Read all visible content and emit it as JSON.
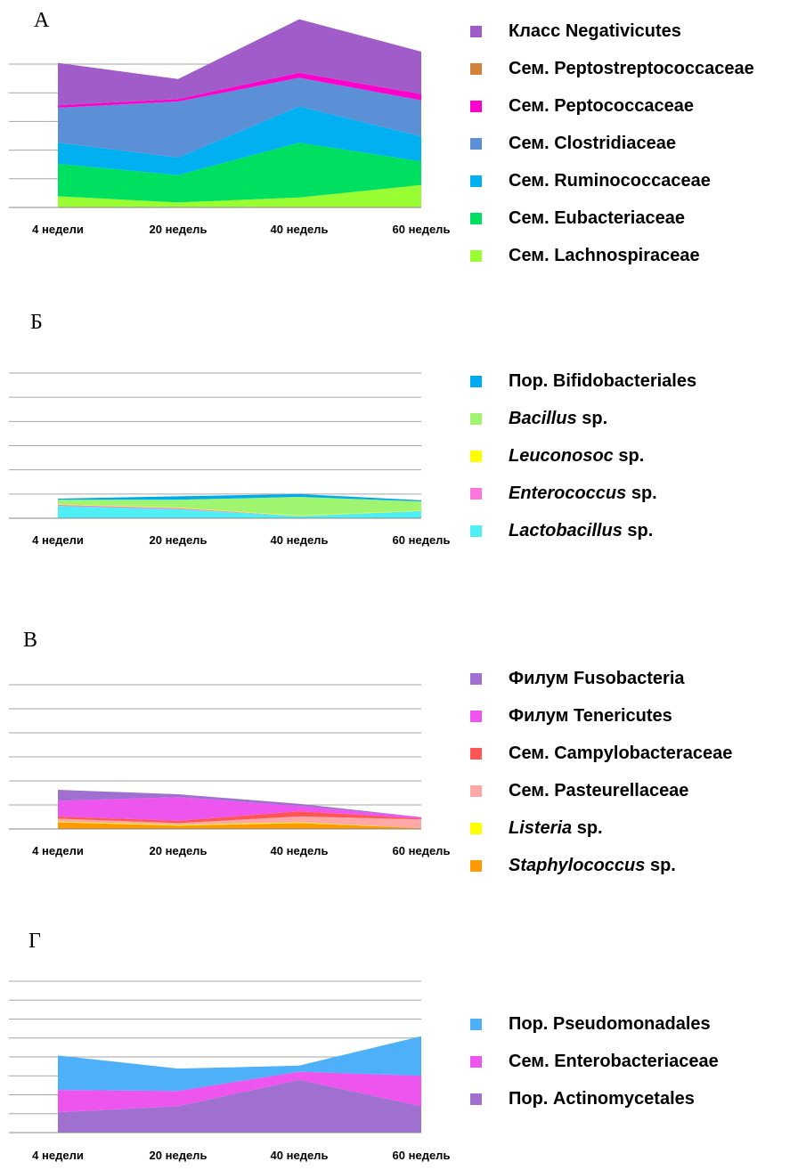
{
  "chart_data": [
    {
      "type": "area",
      "panel": "А",
      "categories": [
        "4 недели",
        "20 недель",
        "40 недель",
        "60 недель"
      ],
      "grid": true,
      "legend_position": "right",
      "series": [
        {
          "name": "Сем. Lachnospiraceae",
          "color": "#99ff33",
          "values": [
            0.9,
            0.4,
            0.8,
            1.8
          ]
        },
        {
          "name": "Сем. Eubacteriaceae",
          "color": "#00e060",
          "values": [
            2.6,
            2.2,
            4.4,
            1.9
          ]
        },
        {
          "name": "Сем. Ruminococcaceae",
          "color": "#00b0f0",
          "values": [
            1.7,
            1.4,
            2.9,
            2.0
          ]
        },
        {
          "name": "Сем. Clostridiaceae",
          "color": "#5b8fd6",
          "values": [
            2.8,
            4.5,
            2.3,
            2.9
          ]
        },
        {
          "name": "Сем. Peptococcaceae",
          "color": "#ff00cc",
          "values": [
            0.2,
            0.2,
            0.4,
            0.5
          ]
        },
        {
          "name": "Сем. Peptostreptococcaceae",
          "color": "#d4813a",
          "values": [
            0.0,
            0.0,
            0.0,
            0.0
          ]
        },
        {
          "name": "Класс Negativicutes",
          "color": "#a05cc8",
          "values": [
            3.4,
            1.6,
            4.3,
            3.4
          ]
        }
      ]
    },
    {
      "type": "area",
      "panel": "Б",
      "categories": [
        "4 недели",
        "20 недель",
        "40 недель",
        "60 недель"
      ],
      "grid": true,
      "legend_position": "right",
      "series": [
        {
          "name": "Lactobacillus sp.",
          "name_italic": "Lactobacillus",
          "name_suffix": " sp.",
          "color": "#4ff0f5",
          "values": [
            2.2,
            1.6,
            0.4,
            1.3
          ]
        },
        {
          "name": "Enterococcus sp.",
          "name_italic": "Enterococcus",
          "name_suffix": " sp.",
          "color": "#ff77dd",
          "values": [
            0.2,
            0.2,
            0.0,
            0.0
          ]
        },
        {
          "name": "Leuconosoc sp.",
          "name_italic": "Leuconosoc",
          "name_suffix": " sp.",
          "color": "#ffff00",
          "values": [
            0.1,
            0.1,
            0.1,
            0.1
          ]
        },
        {
          "name": "Bacillus sp.",
          "name_italic": "Bacillus",
          "name_suffix": " sp.",
          "color": "#a0f570",
          "values": [
            0.8,
            1.4,
            3.3,
            1.6
          ]
        },
        {
          "name": "Пор. Bifidobacteriales",
          "color": "#00aaee",
          "values": [
            0.2,
            0.6,
            0.5,
            0.2
          ]
        }
      ]
    },
    {
      "type": "area",
      "panel": "В",
      "categories": [
        "4 недели",
        "20 недель",
        "40 недель",
        "60 недель"
      ],
      "grid": true,
      "legend_position": "right",
      "series": [
        {
          "name": "Staphylococcus sp.",
          "name_italic": "Staphylococcus",
          "name_suffix": " sp.",
          "color": "#ff9900",
          "values": [
            0.9,
            0.45,
            0.8,
            0.1
          ]
        },
        {
          "name": "Listeria sp.",
          "name_italic": "Listeria",
          "name_suffix": " sp.",
          "color": "#ffff00",
          "values": [
            0.1,
            0.1,
            0.1,
            0.0
          ]
        },
        {
          "name": "Сем. Pasteurellaceae",
          "color": "#ffa8a8",
          "values": [
            0.4,
            0.25,
            0.8,
            1.2
          ]
        },
        {
          "name": "Сем. Campylobacteraceae",
          "color": "#ff5555",
          "values": [
            0.3,
            0.3,
            0.7,
            0.1
          ]
        },
        {
          "name": "Филум Tenericutes",
          "color": "#ee55ee",
          "values": [
            2.1,
            3.2,
            0.7,
            0.2
          ]
        },
        {
          "name": "Филум Fusobacteria",
          "color": "#a070d0",
          "values": [
            1.5,
            0.4,
            0.3,
            0.0
          ]
        }
      ]
    },
    {
      "type": "area",
      "panel": "Г",
      "categories": [
        "4 недели",
        "20 недель",
        "40 недель",
        "60 недель"
      ],
      "grid": true,
      "legend_position": "right",
      "series": [
        {
          "name": "Пор. Actinomycetales",
          "color": "#a070d0",
          "values": [
            2.0,
            2.6,
            5.2,
            2.6
          ]
        },
        {
          "name": "Сем. Enterobacteriaceae",
          "color": "#ee55ee",
          "values": [
            2.2,
            1.5,
            0.8,
            3.0
          ]
        },
        {
          "name": "Пор. Pseudomonadales",
          "color": "#4db0f8",
          "values": [
            3.4,
            2.2,
            0.6,
            3.9
          ]
        }
      ]
    }
  ]
}
